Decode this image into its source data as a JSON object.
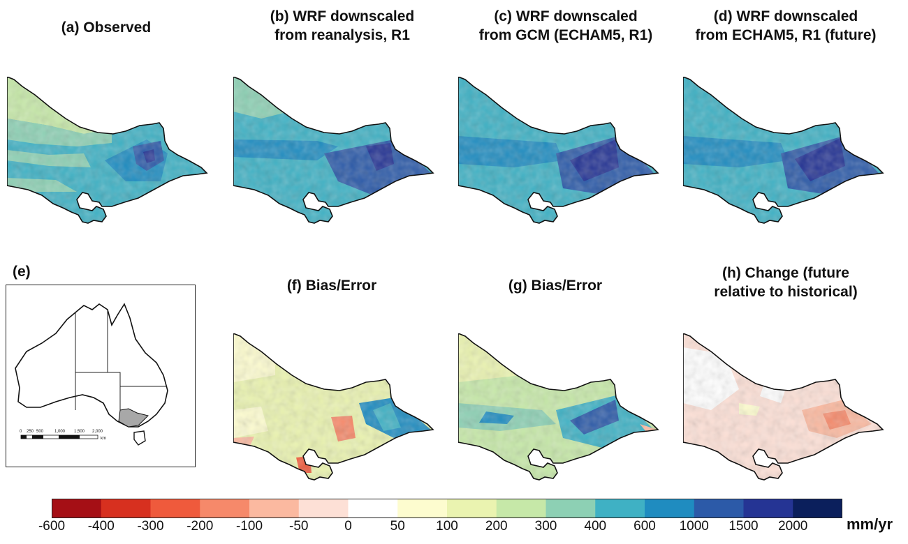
{
  "panels": [
    {
      "id": "a",
      "title": [
        "(a) Observed"
      ]
    },
    {
      "id": "b",
      "title": [
        "(b) WRF downscaled",
        "from reanalysis, R1"
      ]
    },
    {
      "id": "c",
      "title": [
        "(c) WRF downscaled",
        "from GCM (ECHAM5, R1)"
      ]
    },
    {
      "id": "d",
      "title": [
        "(d) WRF downscaled",
        "from ECHAM5, R1 (future)"
      ]
    },
    {
      "id": "e",
      "title": [
        "(e)"
      ]
    },
    {
      "id": "f",
      "title": [
        "(f) Bias/Error"
      ]
    },
    {
      "id": "g",
      "title": [
        "(g) Bias/Error"
      ]
    },
    {
      "id": "h",
      "title": [
        "(h) Change (future",
        "relative to historical)"
      ]
    }
  ],
  "inset": {
    "scale_labels": [
      "0",
      "250",
      "500",
      "1,000",
      "1,500",
      "2,000"
    ],
    "scale_unit": "km",
    "highlight_color": "#a8a8a8"
  },
  "colorbar": {
    "tick_labels": [
      "-600",
      "-400",
      "-300",
      "-200",
      "-100",
      "-50",
      "0",
      "50",
      "100",
      "200",
      "300",
      "400",
      "600",
      "1000",
      "1500",
      "2000"
    ],
    "colors": [
      "#a50f15",
      "#d7301f",
      "#ef5a3c",
      "#f6896a",
      "#fbb9a0",
      "#fde0d6",
      "#ffffff",
      "#fdfccf",
      "#eaf3b0",
      "#c6e8a8",
      "#8dd0b4",
      "#3fb1c4",
      "#1f8cc0",
      "#2c5aa8",
      "#253494",
      "#0b1f5c"
    ],
    "unit": "mm/yr"
  }
}
